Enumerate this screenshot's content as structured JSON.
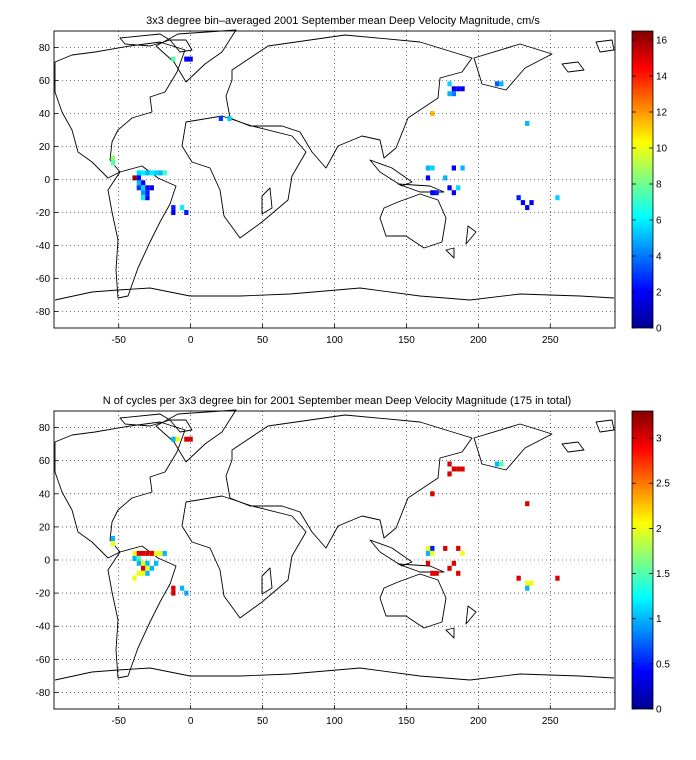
{
  "chart_data": [
    {
      "type": "heatmap",
      "title": "3x3 degree bin–averaged 2001 September mean Deep Velocity Magnitude, cm/s",
      "xlim": [
        -95,
        295
      ],
      "ylim": [
        -90,
        90
      ],
      "xticks": [
        -50,
        0,
        50,
        100,
        150,
        200,
        250
      ],
      "yticks": [
        -80,
        -60,
        -40,
        -20,
        0,
        20,
        40,
        60,
        80
      ],
      "grid": true,
      "colorbar": {
        "min": 0,
        "max": 16.5,
        "ticks": [
          0,
          2,
          4,
          6,
          8,
          10,
          12,
          14,
          16
        ]
      },
      "cells": [
        {
          "lon": -12,
          "lat": 73,
          "value": 7.5
        },
        {
          "lon": -3,
          "lat": 73,
          "value": 2.0
        },
        {
          "lon": 0,
          "lat": 73,
          "value": 2.0
        },
        {
          "lon": 180,
          "lat": 58,
          "value": 5.5
        },
        {
          "lon": 183,
          "lat": 55,
          "value": 2.0
        },
        {
          "lon": 186,
          "lat": 55,
          "value": 2.0
        },
        {
          "lon": 189,
          "lat": 55,
          "value": 2.0
        },
        {
          "lon": 180,
          "lat": 52,
          "value": 5.0
        },
        {
          "lon": 183,
          "lat": 52,
          "value": 4.0
        },
        {
          "lon": 213,
          "lat": 58,
          "value": 3.5
        },
        {
          "lon": 216,
          "lat": 58,
          "value": 5.0
        },
        {
          "lon": 168,
          "lat": 40,
          "value": 11.5
        },
        {
          "lon": 234,
          "lat": 34,
          "value": 5.0
        },
        {
          "lon": 21,
          "lat": 37,
          "value": 3.0
        },
        {
          "lon": 27,
          "lat": 37,
          "value": 5.5
        },
        {
          "lon": -54,
          "lat": 13,
          "value": 8.5
        },
        {
          "lon": -54,
          "lat": 10,
          "value": 7.5
        },
        {
          "lon": -36,
          "lat": 4,
          "value": 5.5
        },
        {
          "lon": -33,
          "lat": 4,
          "value": 6.0
        },
        {
          "lon": -30,
          "lat": 4,
          "value": 5.0
        },
        {
          "lon": -27,
          "lat": 4,
          "value": 6.0
        },
        {
          "lon": -24,
          "lat": 4,
          "value": 5.5
        },
        {
          "lon": -21,
          "lat": 4,
          "value": 5.0
        },
        {
          "lon": -18,
          "lat": 4,
          "value": 7.0
        },
        {
          "lon": -39,
          "lat": 1,
          "value": 16.0
        },
        {
          "lon": -36,
          "lat": 1,
          "value": 2.0
        },
        {
          "lon": -36,
          "lat": -2,
          "value": 5.0
        },
        {
          "lon": -33,
          "lat": -2,
          "value": 2.0
        },
        {
          "lon": -36,
          "lat": -5,
          "value": 3.0
        },
        {
          "lon": -33,
          "lat": -5,
          "value": 5.5
        },
        {
          "lon": -30,
          "lat": -5,
          "value": 2.0
        },
        {
          "lon": -27,
          "lat": -5,
          "value": 2.0
        },
        {
          "lon": -33,
          "lat": -8,
          "value": 4.5
        },
        {
          "lon": -30,
          "lat": -8,
          "value": 2.5
        },
        {
          "lon": -33,
          "lat": -11,
          "value": 6.0
        },
        {
          "lon": -30,
          "lat": -11,
          "value": 2.0
        },
        {
          "lon": -12,
          "lat": -17,
          "value": 2.5
        },
        {
          "lon": -12,
          "lat": -20,
          "value": 2.0
        },
        {
          "lon": -6,
          "lat": -17,
          "value": 6.0
        },
        {
          "lon": -3,
          "lat": -20,
          "value": 2.5
        },
        {
          "lon": 165,
          "lat": 7,
          "value": 5.0
        },
        {
          "lon": 168,
          "lat": 7,
          "value": 5.5
        },
        {
          "lon": 183,
          "lat": 7,
          "value": 2.0
        },
        {
          "lon": 189,
          "lat": 7,
          "value": 5.0
        },
        {
          "lon": 165,
          "lat": 1,
          "value": 2.0
        },
        {
          "lon": 177,
          "lat": 1,
          "value": 5.0
        },
        {
          "lon": 168,
          "lat": -8,
          "value": 2.0
        },
        {
          "lon": 171,
          "lat": -8,
          "value": 2.5
        },
        {
          "lon": 180,
          "lat": -5,
          "value": 2.0
        },
        {
          "lon": 186,
          "lat": -5,
          "value": 5.5
        },
        {
          "lon": 183,
          "lat": -8,
          "value": 2.0
        },
        {
          "lon": 228,
          "lat": -11,
          "value": 2.5
        },
        {
          "lon": 231,
          "lat": -14,
          "value": 2.0
        },
        {
          "lon": 234,
          "lat": -17,
          "value": 2.0
        },
        {
          "lon": 237,
          "lat": -14,
          "value": 2.0
        },
        {
          "lon": 255,
          "lat": -11,
          "value": 5.5
        }
      ]
    },
    {
      "type": "heatmap",
      "title": "N of cycles per 3x3 degree bin for 2001 September mean Deep Velocity Magnitude (175 in total)",
      "xlim": [
        -95,
        295
      ],
      "ylim": [
        -90,
        90
      ],
      "xticks": [
        -50,
        0,
        50,
        100,
        150,
        200,
        250
      ],
      "yticks": [
        -80,
        -60,
        -40,
        -20,
        0,
        20,
        40,
        60,
        80
      ],
      "grid": true,
      "colorbar": {
        "min": 0,
        "max": 3.3,
        "ticks": [
          0,
          0.5,
          1,
          1.5,
          2,
          2.5,
          3
        ]
      },
      "cells": [
        {
          "lon": -12,
          "lat": 73,
          "value": 1.0
        },
        {
          "lon": -9,
          "lat": 73,
          "value": 2.0
        },
        {
          "lon": -3,
          "lat": 73,
          "value": 3.0
        },
        {
          "lon": 0,
          "lat": 73,
          "value": 3.0
        },
        {
          "lon": 180,
          "lat": 58,
          "value": 3.0
        },
        {
          "lon": 183,
          "lat": 55,
          "value": 3.0
        },
        {
          "lon": 186,
          "lat": 55,
          "value": 3.0
        },
        {
          "lon": 189,
          "lat": 55,
          "value": 3.0
        },
        {
          "lon": 180,
          "lat": 52,
          "value": 3.0
        },
        {
          "lon": 213,
          "lat": 58,
          "value": 1.0
        },
        {
          "lon": 216,
          "lat": 58,
          "value": 1.5
        },
        {
          "lon": 168,
          "lat": 40,
          "value": 3.0
        },
        {
          "lon": 234,
          "lat": 34,
          "value": 3.0
        },
        {
          "lon": -54,
          "lat": 13,
          "value": 1.0
        },
        {
          "lon": -54,
          "lat": 10,
          "value": 2.0
        },
        {
          "lon": -39,
          "lat": 4,
          "value": 2.0
        },
        {
          "lon": -36,
          "lat": 4,
          "value": 3.0
        },
        {
          "lon": -33,
          "lat": 4,
          "value": 3.0
        },
        {
          "lon": -30,
          "lat": 4,
          "value": 3.0
        },
        {
          "lon": -27,
          "lat": 4,
          "value": 3.0
        },
        {
          "lon": -24,
          "lat": 4,
          "value": 2.0
        },
        {
          "lon": -21,
          "lat": 4,
          "value": 2.0
        },
        {
          "lon": -18,
          "lat": 4,
          "value": 1.0
        },
        {
          "lon": -39,
          "lat": 1,
          "value": 1.0
        },
        {
          "lon": -36,
          "lat": 1,
          "value": 1.5
        },
        {
          "lon": -36,
          "lat": -2,
          "value": 1.0
        },
        {
          "lon": -33,
          "lat": -2,
          "value": 2.0
        },
        {
          "lon": -30,
          "lat": -2,
          "value": 1.0
        },
        {
          "lon": -24,
          "lat": -2,
          "value": 1.0
        },
        {
          "lon": -33,
          "lat": -5,
          "value": 3.0
        },
        {
          "lon": -30,
          "lat": -5,
          "value": 2.0
        },
        {
          "lon": -27,
          "lat": -5,
          "value": 1.0
        },
        {
          "lon": -36,
          "lat": -8,
          "value": 2.0
        },
        {
          "lon": -33,
          "lat": -8,
          "value": 2.0
        },
        {
          "lon": -30,
          "lat": -8,
          "value": 1.0
        },
        {
          "lon": -39,
          "lat": -11,
          "value": 2.0
        },
        {
          "lon": -12,
          "lat": -17,
          "value": 3.0
        },
        {
          "lon": -12,
          "lat": -20,
          "value": 3.0
        },
        {
          "lon": -6,
          "lat": -17,
          "value": 1.0
        },
        {
          "lon": -3,
          "lat": -20,
          "value": 1.0
        },
        {
          "lon": 165,
          "lat": 7,
          "value": 2.0
        },
        {
          "lon": 168,
          "lat": 7,
          "value": 0.5
        },
        {
          "lon": 177,
          "lat": 7,
          "value": 3.0
        },
        {
          "lon": 186,
          "lat": 7,
          "value": 3.0
        },
        {
          "lon": 165,
          "lat": 4,
          "value": 1.0
        },
        {
          "lon": 168,
          "lat": 4,
          "value": 2.0
        },
        {
          "lon": 189,
          "lat": 4,
          "value": 2.0
        },
        {
          "lon": 165,
          "lat": -2,
          "value": 3.0
        },
        {
          "lon": 183,
          "lat": -2,
          "value": 3.0
        },
        {
          "lon": 180,
          "lat": -5,
          "value": 3.0
        },
        {
          "lon": 168,
          "lat": -8,
          "value": 3.0
        },
        {
          "lon": 171,
          "lat": -8,
          "value": 3.0
        },
        {
          "lon": 186,
          "lat": -8,
          "value": 3.0
        },
        {
          "lon": 228,
          "lat": -11,
          "value": 3.0
        },
        {
          "lon": 234,
          "lat": -14,
          "value": 2.0
        },
        {
          "lon": 237,
          "lat": -14,
          "value": 2.0
        },
        {
          "lon": 234,
          "lat": -17,
          "value": 1.0
        },
        {
          "lon": 255,
          "lat": -11,
          "value": 3.0
        }
      ]
    }
  ]
}
